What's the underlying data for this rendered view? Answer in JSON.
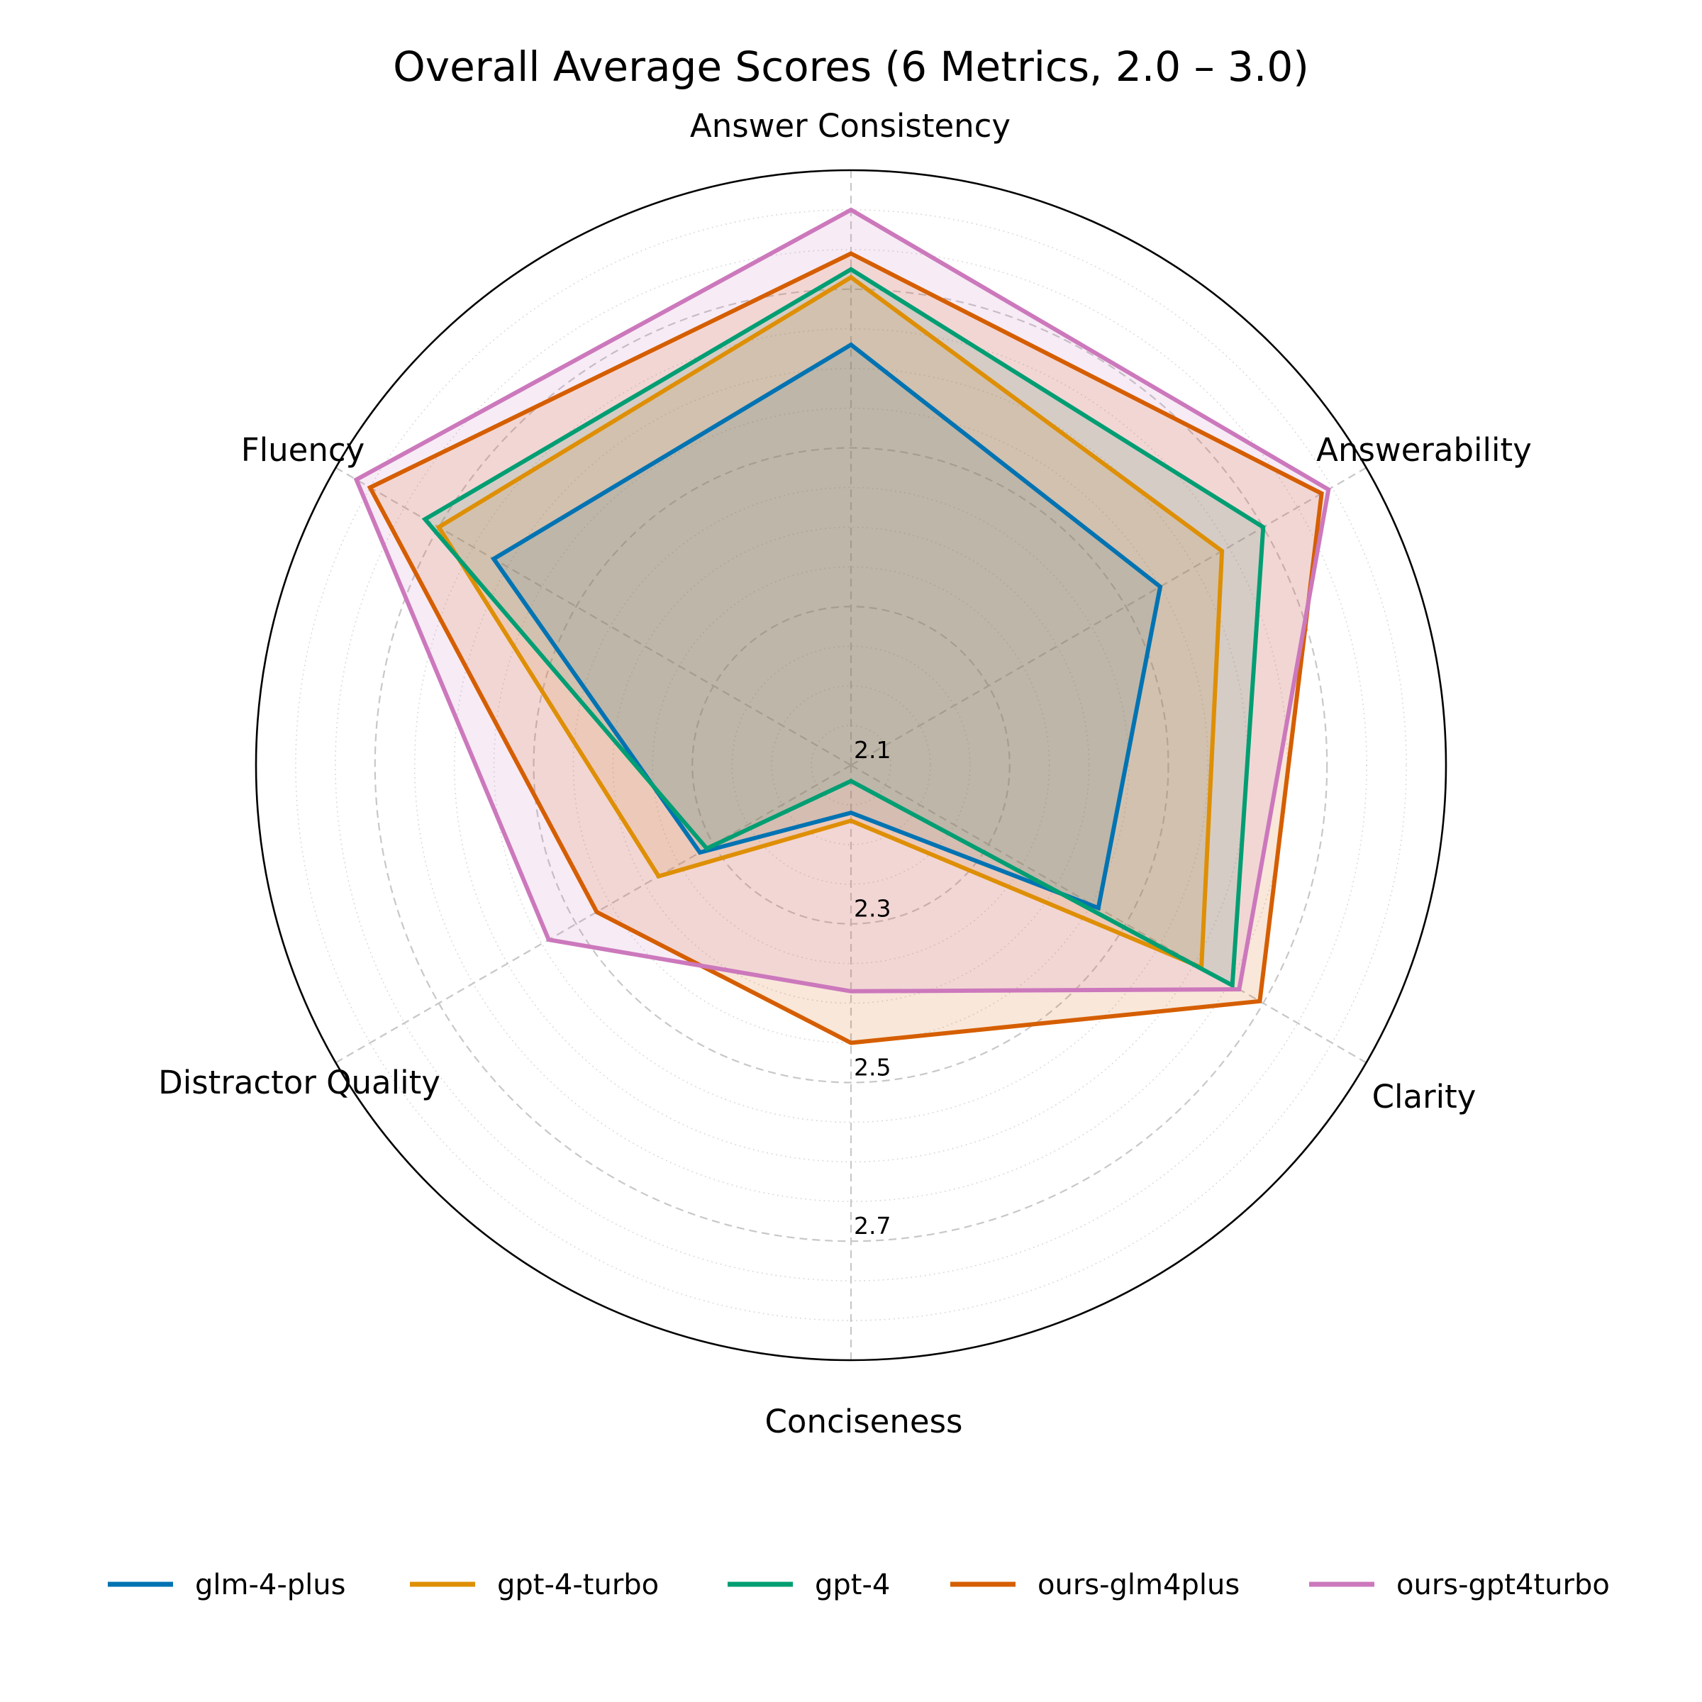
{
  "chart_data": {
    "type": "radar",
    "title": "Overall Average Scores (6 Metrics, 2.0 – 3.0)",
    "axes": [
      "Answer Consistency",
      "Answerability",
      "Clarity",
      "Conciseness",
      "Distractor Quality",
      "Fluency"
    ],
    "rlim": [
      2.1,
      2.85
    ],
    "rticks": [
      2.1,
      2.3,
      2.5,
      2.7
    ],
    "rtick_labels": [
      "2.1",
      "2.3",
      "2.5",
      "2.7"
    ],
    "minor_rticks": [
      2.15,
      2.2,
      2.25,
      2.35,
      2.4,
      2.45,
      2.55,
      2.6,
      2.65,
      2.75,
      2.8
    ],
    "grid": true,
    "legend_position": "bottom",
    "series": [
      {
        "name": "glm-4-plus",
        "color": "#0173B2",
        "values": [
          2.63,
          2.55,
          2.46,
          2.16,
          2.32,
          2.62
        ]
      },
      {
        "name": "gpt-4-turbo",
        "color": "#DE8F05",
        "values": [
          2.715,
          2.64,
          2.61,
          2.17,
          2.38,
          2.7
        ]
      },
      {
        "name": "gpt-4",
        "color": "#029E73",
        "values": [
          2.725,
          2.7,
          2.655,
          2.12,
          2.31,
          2.72
        ]
      },
      {
        "name": "ours-glm4plus",
        "color": "#D55E00",
        "values": [
          2.745,
          2.785,
          2.695,
          2.45,
          2.47,
          2.8
        ]
      },
      {
        "name": "ours-gpt4turbo",
        "color": "#CC78BC",
        "values": [
          2.8,
          2.795,
          2.665,
          2.385,
          2.54,
          2.82
        ]
      }
    ]
  }
}
